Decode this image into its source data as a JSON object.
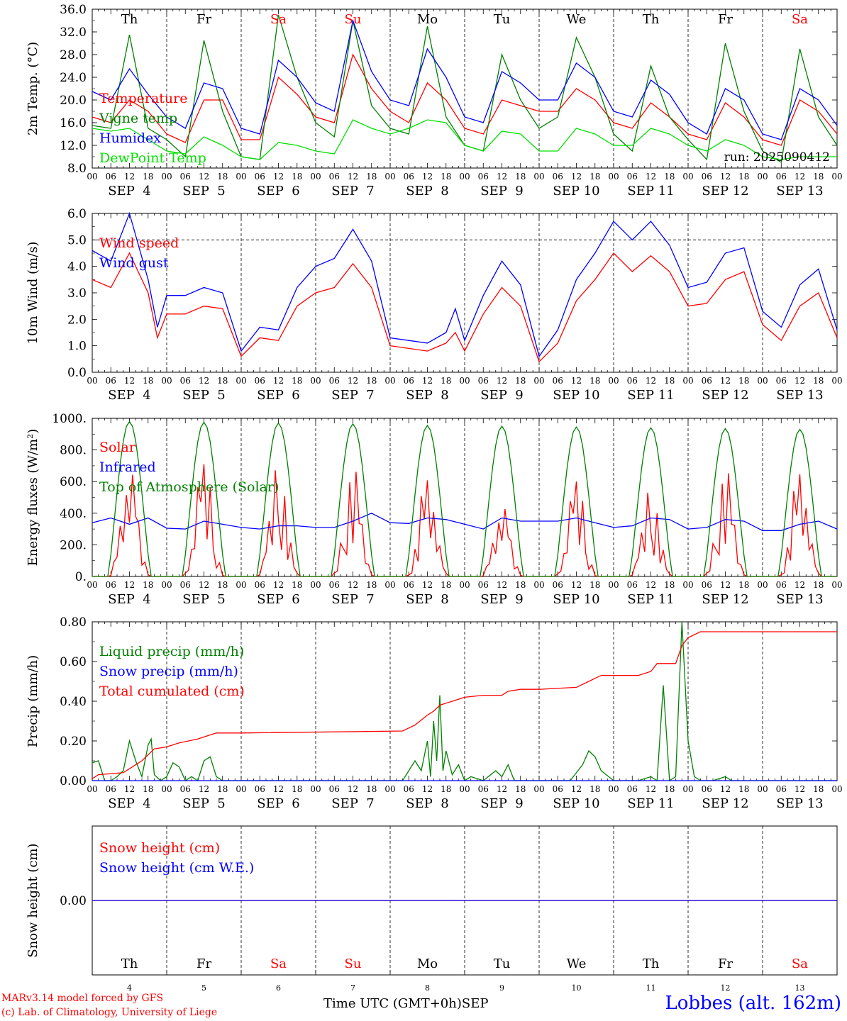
{
  "run_label": "run: 2025090412",
  "footer": {
    "credit_line1": "MARv3.14 model forced by GFS",
    "credit_line2": "(c) Lab. of Climatology, University of Liege",
    "x_title": "Time UTC (GMT+0h)",
    "month": "SEP",
    "station": "Lobbes (alt. 162m)"
  },
  "days": {
    "weekday": [
      "Th",
      "Fr",
      "Sa",
      "Su",
      "Mo",
      "Tu",
      "We",
      "Th",
      "Fr",
      "Sa"
    ],
    "weekend": [
      false,
      false,
      true,
      true,
      false,
      false,
      false,
      false,
      false,
      true
    ],
    "date_labels": [
      "SEP  4",
      "SEP  5",
      "SEP  6",
      "SEP  7",
      "SEP  8",
      "SEP  9",
      "SEP 10",
      "SEP 11",
      "SEP 12",
      "SEP 13"
    ],
    "day_numbers": [
      "4",
      "5",
      "6",
      "7",
      "8",
      "9",
      "10",
      "11",
      "12",
      "13"
    ],
    "hour_ticks": [
      "00",
      "06",
      "12",
      "18"
    ],
    "final_tick": "00"
  },
  "colors": {
    "red": "#ff0000",
    "green": "#008000",
    "blue": "#0000ff",
    "lightgreen": "#00e000",
    "weekend": "#ff0000"
  },
  "chart_data": [
    {
      "type": "line",
      "ylabel": "2m Temp. (°C)",
      "ylim": [
        8,
        36
      ],
      "yticks": [
        "8.0",
        "12.0",
        "16.0",
        "20.0",
        "24.0",
        "28.0",
        "32.0",
        "36.0"
      ],
      "ytick_values": [
        8,
        12,
        16,
        20,
        24,
        28,
        32,
        36
      ],
      "ref_line": null,
      "x_unit": "hours since Sep 4 00 UTC",
      "series": [
        {
          "name": "Temperature",
          "color": "red",
          "x": [
            0,
            6,
            12,
            18,
            24,
            30,
            36,
            42,
            48,
            54,
            60,
            66,
            72,
            78,
            84,
            90,
            96,
            102,
            108,
            114,
            120,
            126,
            132,
            138,
            144,
            150,
            156,
            162,
            168,
            174,
            180,
            186,
            192,
            198,
            204,
            210,
            216,
            222,
            228,
            234,
            240
          ],
          "y": [
            17,
            16,
            20,
            18,
            14,
            12.5,
            20,
            20,
            13,
            13,
            24,
            21,
            17,
            16,
            28,
            22,
            18,
            16,
            23,
            20,
            15,
            14,
            20,
            19,
            18,
            18,
            22,
            20,
            16,
            15,
            19.5,
            17,
            14,
            13,
            19.5,
            17,
            13,
            12,
            20,
            18,
            14
          ]
        },
        {
          "name": "Vigne temp",
          "color": "green",
          "x": [
            0,
            6,
            12,
            18,
            24,
            30,
            36,
            42,
            48,
            54,
            60,
            66,
            72,
            78,
            84,
            90,
            96,
            102,
            108,
            114,
            120,
            126,
            132,
            138,
            144,
            150,
            156,
            162,
            168,
            174,
            180,
            186,
            192,
            198,
            204,
            210,
            216,
            222,
            228,
            234,
            240
          ],
          "y": [
            15.5,
            15,
            31.5,
            15,
            13,
            10,
            30.5,
            18,
            10,
            9.5,
            35,
            24,
            16,
            13.5,
            34,
            19,
            15,
            14,
            33,
            17,
            12,
            11,
            28,
            20,
            15,
            17,
            31,
            24,
            14,
            11,
            26,
            17,
            13,
            9.5,
            30,
            18,
            11,
            9,
            29,
            17,
            12
          ]
        },
        {
          "name": "Humidex",
          "color": "blue",
          "x": [
            0,
            6,
            12,
            18,
            24,
            30,
            36,
            42,
            48,
            54,
            60,
            66,
            72,
            78,
            84,
            90,
            96,
            102,
            108,
            114,
            120,
            126,
            132,
            138,
            144,
            150,
            156,
            162,
            168,
            174,
            180,
            186,
            192,
            198,
            204,
            210,
            216,
            222,
            228,
            234,
            240
          ],
          "y": [
            21.5,
            20,
            25.5,
            21,
            17,
            15,
            23,
            22,
            15,
            14,
            27,
            24,
            19.5,
            18,
            34,
            25,
            20,
            19,
            29,
            24,
            17,
            16,
            25,
            23,
            20,
            20,
            26.5,
            24,
            18,
            17,
            23.5,
            21,
            16,
            14,
            22,
            20,
            14,
            13,
            22,
            20,
            15.5
          ]
        },
        {
          "name": "DewPoint Temp",
          "color": "lightgreen",
          "x": [
            0,
            6,
            12,
            18,
            24,
            30,
            36,
            42,
            48,
            54,
            60,
            66,
            72,
            78,
            84,
            90,
            96,
            102,
            108,
            114,
            120,
            126,
            132,
            138,
            144,
            150,
            156,
            162,
            168,
            174,
            180,
            186,
            192,
            198,
            204,
            210,
            216,
            222,
            228,
            234,
            240
          ],
          "y": [
            15,
            14.5,
            15,
            13,
            11,
            10.5,
            13.5,
            12,
            10,
            9.5,
            12.5,
            12,
            11,
            10.5,
            16.5,
            15,
            14,
            15,
            16.5,
            16,
            12,
            11,
            14.5,
            14,
            11,
            11,
            15,
            14,
            12,
            12,
            15,
            14,
            12,
            11,
            13,
            12,
            10,
            9.5,
            10,
            10,
            10
          ]
        }
      ]
    },
    {
      "type": "line",
      "ylabel": "10m Wind (m/s)",
      "ylim": [
        0,
        6
      ],
      "yticks": [
        "0.0",
        "1.0",
        "2.0",
        "3.0",
        "4.0",
        "5.0",
        "6.0"
      ],
      "ytick_values": [
        0,
        1,
        2,
        3,
        4,
        5,
        6
      ],
      "ref_line": 5,
      "x_unit": "hours since Sep 4 00 UTC",
      "series": [
        {
          "name": "Wind speed",
          "color": "red",
          "x": [
            0,
            6,
            12,
            18,
            21,
            24,
            30,
            36,
            42,
            48,
            54,
            60,
            66,
            72,
            78,
            84,
            90,
            96,
            102,
            108,
            114,
            117,
            120,
            126,
            132,
            138,
            144,
            150,
            156,
            162,
            168,
            174,
            180,
            186,
            192,
            198,
            204,
            210,
            216,
            222,
            228,
            234,
            240
          ],
          "y": [
            3.5,
            3.2,
            4.5,
            3,
            1.3,
            2.2,
            2.2,
            2.5,
            2.4,
            0.6,
            1.3,
            1.2,
            2.5,
            3,
            3.2,
            4.1,
            3.2,
            1,
            0.9,
            0.8,
            1.1,
            1.5,
            0.8,
            2.2,
            3.2,
            2.5,
            0.4,
            1.1,
            2.7,
            3.5,
            4.5,
            3.8,
            4.4,
            3.8,
            2.5,
            2.6,
            3.5,
            3.8,
            1.8,
            1.2,
            2.5,
            3,
            1.3
          ]
        },
        {
          "name": "Wind gust",
          "color": "blue",
          "x": [
            0,
            6,
            12,
            18,
            21,
            24,
            30,
            36,
            42,
            48,
            54,
            60,
            66,
            72,
            78,
            84,
            90,
            96,
            102,
            108,
            114,
            117,
            120,
            126,
            132,
            138,
            144,
            150,
            156,
            162,
            168,
            174,
            180,
            186,
            192,
            198,
            204,
            210,
            216,
            222,
            228,
            234,
            240
          ],
          "y": [
            4.6,
            4.2,
            6,
            3.5,
            1.7,
            2.9,
            2.9,
            3.2,
            3,
            0.8,
            1.7,
            1.6,
            3.2,
            4,
            4.3,
            5.4,
            4.2,
            1.3,
            1.2,
            1.1,
            1.5,
            2.4,
            1.2,
            2.9,
            4.2,
            3.3,
            0.6,
            1.6,
            3.5,
            4.5,
            5.7,
            5,
            5.7,
            4.8,
            3.2,
            3.4,
            4.5,
            4.7,
            2.3,
            1.7,
            3.3,
            3.9,
            1.6
          ]
        }
      ]
    },
    {
      "type": "line",
      "ylabel": "Energy fluxes (W/m²)",
      "ylim": [
        0,
        1000
      ],
      "yticks": [
        "0.",
        "200.",
        "400.",
        "600.",
        "800.",
        "1000."
      ],
      "ytick_values": [
        0,
        200,
        400,
        600,
        800,
        1000
      ],
      "ref_line": null,
      "x_unit": "hours since Sep 4 00 UTC",
      "series": [
        {
          "name": "Solar",
          "color": "red",
          "peaks": [
            680,
            710,
            710,
            700,
            640,
            450,
            600,
            560,
            690,
            680
          ],
          "mode": "solar"
        },
        {
          "name": "Infrared",
          "color": "blue",
          "x": [
            0,
            6,
            12,
            18,
            24,
            30,
            36,
            42,
            48,
            54,
            60,
            66,
            72,
            78,
            84,
            90,
            96,
            102,
            108,
            114,
            120,
            126,
            132,
            138,
            144,
            150,
            156,
            162,
            168,
            174,
            180,
            186,
            192,
            198,
            204,
            210,
            216,
            222,
            228,
            234,
            240
          ],
          "y": [
            340,
            370,
            330,
            370,
            305,
            300,
            350,
            330,
            310,
            300,
            320,
            320,
            310,
            310,
            350,
            400,
            340,
            335,
            370,
            360,
            330,
            300,
            370,
            350,
            350,
            350,
            370,
            340,
            310,
            320,
            370,
            360,
            300,
            310,
            360,
            350,
            290,
            290,
            330,
            350,
            300
          ]
        },
        {
          "name": "Top of Atmosphere (Solar)",
          "color": "green",
          "peaks": [
            980,
            975,
            970,
            965,
            955,
            950,
            945,
            940,
            935,
            930
          ],
          "mode": "toa"
        }
      ]
    },
    {
      "type": "line",
      "ylabel": "Precip (mm/h)",
      "ylim": [
        0,
        0.8
      ],
      "yticks": [
        "0.00",
        "0.20",
        "0.40",
        "0.60",
        "0.80"
      ],
      "ytick_values": [
        0,
        0.2,
        0.4,
        0.6,
        0.8
      ],
      "ref_line": null,
      "x_unit": "hours since Sep 4 00 UTC",
      "series": [
        {
          "name": "Liquid precip (mm/h)",
          "color": "green",
          "x": [
            0,
            2,
            4,
            6,
            8,
            10,
            12,
            14,
            16,
            18,
            19,
            20,
            22,
            24,
            26,
            28,
            30,
            32,
            34,
            36,
            38,
            40,
            42,
            44,
            48,
            100,
            104,
            106,
            108,
            109,
            110,
            111,
            112,
            113,
            114,
            116,
            118,
            120,
            122,
            126,
            130,
            132,
            134,
            136,
            140,
            154,
            158,
            160,
            162,
            164,
            168,
            176,
            180,
            182,
            184,
            186,
            188,
            190,
            192,
            194,
            196,
            200,
            204,
            206,
            208,
            216,
            240
          ],
          "y": [
            0.09,
            0.1,
            0,
            0,
            0.02,
            0.05,
            0.2,
            0.1,
            0.02,
            0.18,
            0.21,
            0.03,
            0,
            0.02,
            0.09,
            0.07,
            0,
            0.02,
            0,
            0.1,
            0.12,
            0.02,
            0,
            0,
            0,
            0,
            0.1,
            0.05,
            0.2,
            0.02,
            0.3,
            0.1,
            0.43,
            0.05,
            0.15,
            0.03,
            0.08,
            0,
            0.02,
            0,
            0.05,
            0.02,
            0.08,
            0,
            0,
            0,
            0.08,
            0.15,
            0.12,
            0.05,
            0,
            0,
            0.02,
            0,
            0.48,
            0,
            0.02,
            0.8,
            0.2,
            0.02,
            0,
            0,
            0.02,
            0,
            0,
            0,
            0
          ]
        },
        {
          "name": "Snow precip (mm/h)",
          "color": "blue",
          "x": [
            0,
            240
          ],
          "y": [
            0,
            0
          ]
        },
        {
          "name": "Total cumulated (cm)",
          "color": "red",
          "x": [
            0,
            2,
            10,
            12,
            16,
            20,
            24,
            28,
            34,
            36,
            40,
            48,
            100,
            104,
            108,
            110,
            112,
            114,
            118,
            120,
            126,
            132,
            134,
            138,
            144,
            156,
            160,
            164,
            176,
            180,
            182,
            188,
            190,
            192,
            196,
            200,
            240
          ],
          "y": [
            0.01,
            0.03,
            0.04,
            0.06,
            0.1,
            0.16,
            0.17,
            0.19,
            0.21,
            0.22,
            0.24,
            0.24,
            0.25,
            0.28,
            0.33,
            0.35,
            0.38,
            0.39,
            0.41,
            0.42,
            0.43,
            0.43,
            0.45,
            0.46,
            0.46,
            0.47,
            0.5,
            0.53,
            0.53,
            0.55,
            0.59,
            0.59,
            0.68,
            0.72,
            0.75,
            0.75,
            0.75
          ]
        }
      ]
    },
    {
      "type": "line",
      "ylabel": "Snow height (cm)",
      "ylim": [
        -1,
        1
      ],
      "yticks": [
        "0.00"
      ],
      "ytick_values": [
        0
      ],
      "ref_line": null,
      "x_unit": "hours since Sep 4 00 UTC",
      "series": [
        {
          "name": "Snow height (cm)",
          "color": "red",
          "x": [
            0,
            240
          ],
          "y": [
            0,
            0
          ]
        },
        {
          "name": "Snow height (cm W.E.)",
          "color": "blue",
          "x": [
            0,
            240
          ],
          "y": [
            0,
            0
          ]
        }
      ]
    }
  ]
}
